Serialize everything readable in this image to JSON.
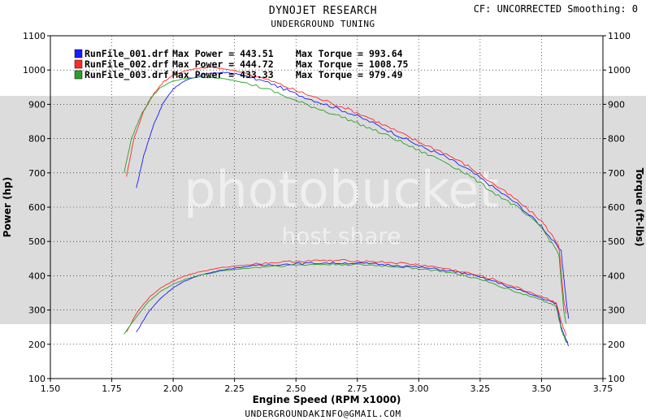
{
  "header": {
    "title": "DYNOJET RESEARCH",
    "subtitle": "UNDERGROUND TUNING",
    "correction": "CF: UNCORRECTED  Smoothing: 0"
  },
  "footer": {
    "email": "UNDERGROUNDAKINFO@GMAIL.COM"
  },
  "watermark": {
    "line1": "photobucket",
    "line2": "host.share"
  },
  "colors": {
    "run1": "#1a1aff",
    "run2": "#ff2a2a",
    "run3": "#2aa02a",
    "band": "#dcdcdc",
    "grid": "#000000"
  },
  "chart_data": {
    "type": "line",
    "xlabel": "Engine Speed (RPM x1000)",
    "ylabel_left": "Power (hp)",
    "ylabel_right": "Torque (ft-lbs)",
    "xlim": [
      1.5,
      3.75
    ],
    "ylim": [
      100,
      1100
    ],
    "x_ticks": [
      "1.50",
      "1.75",
      "2.00",
      "2.25",
      "2.50",
      "2.75",
      "3.00",
      "3.25",
      "3.50",
      "3.75"
    ],
    "y_ticks": [
      "100",
      "200",
      "300",
      "400",
      "500",
      "600",
      "700",
      "800",
      "900",
      "1000",
      "1100"
    ],
    "legend": [
      {
        "file": "RunFile_001.drf",
        "power_label": "Max Power = 443.51",
        "torque_label": "Max Torque = 993.64"
      },
      {
        "file": "RunFile_002.drf",
        "power_label": "Max Power = 444.72",
        "torque_label": "Max Torque = 1008.75"
      },
      {
        "file": "RunFile_003.drf",
        "power_label": "Max Power = 433.33",
        "torque_label": "Max Torque = 979.49"
      }
    ],
    "series": [
      {
        "run": 1,
        "measure": "torque",
        "x": [
          1.85,
          1.88,
          1.92,
          1.96,
          2.0,
          2.05,
          2.1,
          2.15,
          2.2,
          2.25,
          2.3,
          2.4,
          2.5,
          2.6,
          2.7,
          2.8,
          2.9,
          3.0,
          3.1,
          3.2,
          3.3,
          3.4,
          3.5,
          3.58,
          3.6,
          3.61
        ],
        "y": [
          655,
          750,
          840,
          905,
          945,
          970,
          982,
          990,
          993,
          990,
          982,
          960,
          930,
          905,
          880,
          850,
          815,
          780,
          750,
          710,
          660,
          610,
          545,
          470,
          330,
          275
        ]
      },
      {
        "run": 2,
        "measure": "torque",
        "x": [
          1.81,
          1.84,
          1.88,
          1.92,
          1.96,
          2.0,
          2.05,
          2.1,
          2.15,
          2.2,
          2.25,
          2.3,
          2.4,
          2.5,
          2.6,
          2.7,
          2.8,
          2.9,
          3.0,
          3.1,
          3.2,
          3.3,
          3.4,
          3.5,
          3.57,
          3.59,
          3.6
        ],
        "y": [
          690,
          800,
          880,
          930,
          965,
          985,
          998,
          1005,
          1008,
          1004,
          998,
          990,
          968,
          940,
          915,
          890,
          860,
          825,
          790,
          760,
          720,
          670,
          620,
          560,
          490,
          330,
          290
        ]
      },
      {
        "run": 3,
        "measure": "torque",
        "x": [
          1.8,
          1.83,
          1.87,
          1.91,
          1.95,
          2.0,
          2.05,
          2.1,
          2.15,
          2.2,
          2.25,
          2.3,
          2.4,
          2.5,
          2.6,
          2.7,
          2.8,
          2.9,
          3.0,
          3.1,
          3.2,
          3.3,
          3.4,
          3.5,
          3.57,
          3.59,
          3.6
        ],
        "y": [
          700,
          800,
          870,
          920,
          950,
          968,
          975,
          979,
          978,
          975,
          970,
          962,
          940,
          910,
          885,
          860,
          830,
          800,
          765,
          735,
          695,
          645,
          600,
          540,
          465,
          300,
          260
        ]
      },
      {
        "run": 1,
        "measure": "power",
        "x": [
          1.85,
          1.9,
          1.95,
          2.0,
          2.05,
          2.1,
          2.2,
          2.3,
          2.4,
          2.5,
          2.6,
          2.7,
          2.8,
          2.9,
          3.0,
          3.1,
          3.2,
          3.3,
          3.4,
          3.5,
          3.56,
          3.58,
          3.6,
          3.61
        ],
        "y": [
          235,
          295,
          335,
          365,
          385,
          400,
          417,
          427,
          432,
          435,
          437,
          437,
          435,
          431,
          425,
          417,
          405,
          385,
          360,
          335,
          318,
          250,
          215,
          195
        ]
      },
      {
        "run": 2,
        "measure": "power",
        "x": [
          1.81,
          1.85,
          1.9,
          1.95,
          2.0,
          2.05,
          2.1,
          2.2,
          2.3,
          2.4,
          2.5,
          2.6,
          2.7,
          2.8,
          2.9,
          3.0,
          3.1,
          3.2,
          3.3,
          3.4,
          3.5,
          3.56,
          3.58,
          3.6
        ],
        "y": [
          235,
          290,
          335,
          365,
          385,
          400,
          410,
          424,
          432,
          438,
          442,
          444,
          444,
          442,
          438,
          432,
          422,
          408,
          390,
          365,
          340,
          322,
          265,
          225
        ]
      },
      {
        "run": 3,
        "measure": "power",
        "x": [
          1.8,
          1.85,
          1.9,
          1.95,
          2.0,
          2.05,
          2.1,
          2.2,
          2.3,
          2.4,
          2.5,
          2.6,
          2.7,
          2.8,
          2.9,
          3.0,
          3.1,
          3.2,
          3.3,
          3.4,
          3.5,
          3.56,
          3.58,
          3.6
        ],
        "y": [
          230,
          280,
          325,
          355,
          375,
          390,
          400,
          414,
          422,
          428,
          431,
          433,
          433,
          431,
          427,
          421,
          412,
          398,
          378,
          352,
          330,
          310,
          245,
          205
        ]
      }
    ]
  }
}
